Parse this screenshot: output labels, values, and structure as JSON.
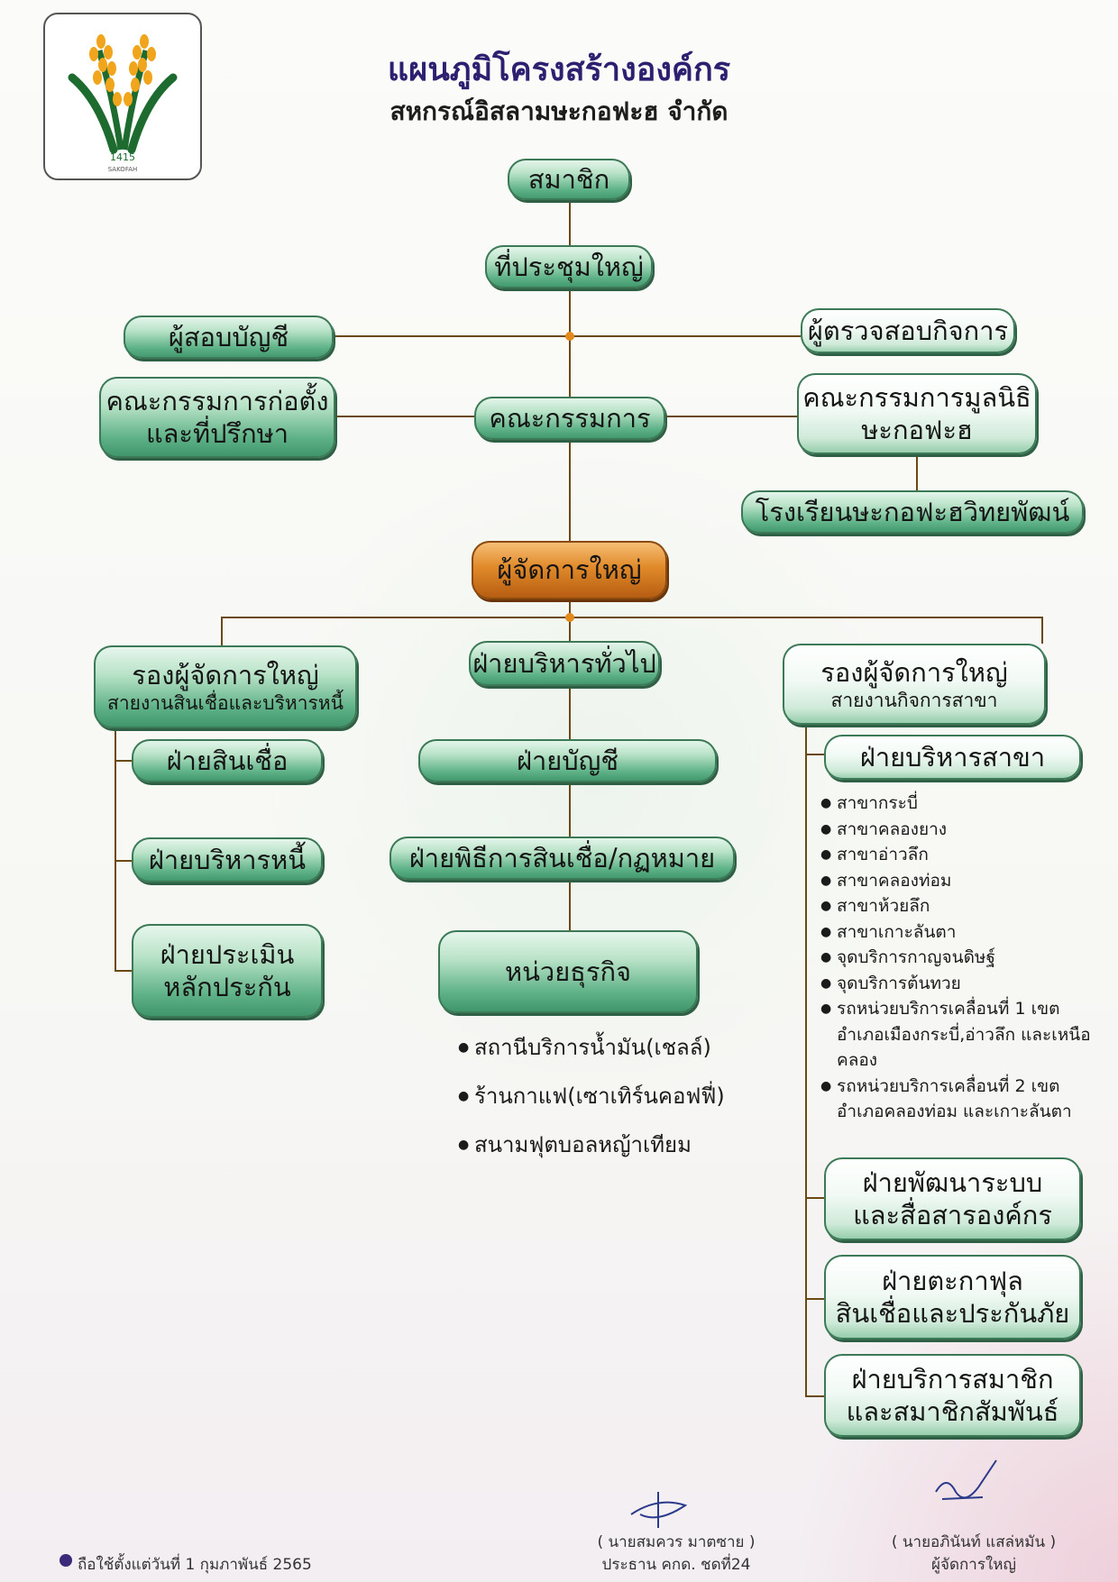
{
  "title": "แผนภูมิโครงสร้างองค์กร",
  "subtitle": "สหกรณ์อิสลามษะกอฟะฮ จำกัด",
  "logo": {
    "text": "SAKOFAH",
    "mark": "1415"
  },
  "nodes": {
    "members": "สมาชิก",
    "general_meeting": "ที่ประชุมใหญ่",
    "auditor": "ผู้สอบบัญชี",
    "inspector": "ผู้ตรวจสอบกิจการ",
    "founding_committee": [
      "คณะกรรมการก่อตั้ง",
      "และที่ปรึกษา"
    ],
    "board": "คณะกรรมการ",
    "foundation_committee": [
      "คณะกรรมการมูลนิธิ",
      "ษะกอฟะฮ"
    ],
    "school": "โรงเรียนษะกอฟะฮวิทยพัฒน์",
    "general_manager": "ผู้จัดการใหญ่",
    "deputy_credit": {
      "title": "รองผู้จัดการใหญ่",
      "sub": "สายงานสินเชื่อและบริหารหนี้"
    },
    "general_admin": "ฝ่ายบริหารทั่วไป",
    "deputy_branch": {
      "title": "รองผู้จัดการใหญ่",
      "sub": "สายงานกิจการสาขา"
    },
    "credit_dept": "ฝ่ายสินเชื่อ",
    "debt_dept": "ฝ่ายบริหารหนี้",
    "collateral_dept": [
      "ฝ่ายประเมิน",
      "หลักประกัน"
    ],
    "accounting_dept": "ฝ่ายบัญชี",
    "legal_dept": "ฝ่ายพิธีการสินเชื่อ/กฏหมาย",
    "business_unit": "หน่วยธุรกิจ",
    "branch_admin": "ฝ่ายบริหารสาขา",
    "system_dev": [
      "ฝ่ายพัฒนาระบบ",
      "และสื่อสารองค์กร"
    ],
    "takaful": [
      "ฝ่ายตะกาฟุล",
      "สินเชื่อและประกันภัย"
    ],
    "member_services": [
      "ฝ่ายบริการสมาชิก",
      "และสมาชิกสัมพันธ์"
    ]
  },
  "business_units": [
    "สถานีบริการน้ำมัน(เชลล์)",
    "ร้านกาแฟ(เซาเทิร์นคอฟฟี่)",
    "สนามฟุตบอลหญ้าเทียม"
  ],
  "branches": [
    "สาขากระบี่",
    "สาขาคลองยาง",
    "สาขาอ่าวลึก",
    "สาขาคลองท่อม",
    "สาขาห้วยลึก",
    "สาขาเกาะลันตา",
    "จุดบริการกาญจนดิษฐ์",
    "จุดบริการต้นทวย",
    "รถหน่วยบริการเคลื่อนที่ 1 เขตอำเภอเมืองกระบี่,อ่าวลึก และเหนือคลอง",
    "รถหน่วยบริการเคลื่อนที่ 2 เขตอำเภอคลองท่อม และเกาะลันตา"
  ],
  "footer": {
    "effective": "ถือใช้ตั้งแต่วันที่ 1 กุมภาพันธ์ 2565",
    "chair_name": "( นายสมควร มาตซาย )",
    "chair_title": "ประธาน คกด. ชดที่24",
    "manager_name": "( นายอภินันท์ แสล่หมัน )",
    "manager_title": "ผู้จัดการใหญ่"
  },
  "colors": {
    "node_green": "#5fb287",
    "node_orange": "#e08a2a",
    "line": "#6a4a12",
    "junction": "#e38a1c",
    "title": "#2d2070"
  }
}
